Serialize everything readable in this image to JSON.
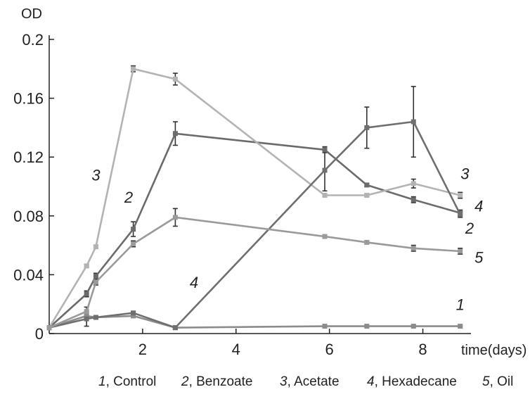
{
  "chart_data": {
    "type": "line",
    "ylabel": "OD",
    "xlabel": "time(days)",
    "xlim": [
      0,
      9
    ],
    "ylim": [
      0,
      0.2
    ],
    "x_ticks": [
      2,
      4,
      6,
      8
    ],
    "y_ticks": [
      0,
      0.04,
      0.08,
      0.12,
      0.16,
      0.2
    ],
    "y_tick_labels": [
      "0",
      "0.04",
      "0.08",
      "0.12",
      "0.16",
      "0.2"
    ],
    "grid": false,
    "legend_position": "bottom",
    "legend": [
      {
        "num": "1",
        "label": ", Control"
      },
      {
        "num": "2",
        "label": ", Benzoate"
      },
      {
        "num": "3",
        "label": ", Acetate"
      },
      {
        "num": "4",
        "label": ", Hexadecane"
      },
      {
        "num": "5",
        "label": ", Oil"
      }
    ],
    "series": [
      {
        "tag": "1",
        "color": "#8c8c8c",
        "x": [
          0,
          0.8,
          1.0,
          1.8,
          2.7,
          5.9,
          6.8,
          7.8,
          8.8
        ],
        "y": [
          0.004,
          0.012,
          0.011,
          0.012,
          0.004,
          0.005,
          0.005,
          0.005,
          0.005
        ],
        "err": [
          0,
          0.001,
          0.001,
          0.001,
          0.001,
          0.0005,
          0.0005,
          0.0005,
          0.0005
        ]
      },
      {
        "tag": "2",
        "color": "#6b6b6b",
        "x": [
          0,
          0.8,
          1.0,
          1.8,
          2.7,
          5.9,
          6.8,
          7.8,
          8.8
        ],
        "y": [
          0.004,
          0.027,
          0.039,
          0.071,
          0.136,
          0.125,
          0.101,
          0.091,
          0.082
        ],
        "err": [
          0,
          0.002,
          0.002,
          0.005,
          0.008,
          0.002,
          0.001,
          0.002,
          0.002
        ]
      },
      {
        "tag": "3",
        "color": "#b3b3b3",
        "x": [
          0,
          0.8,
          1.0,
          1.8,
          2.7,
          5.9,
          6.8,
          7.8,
          8.8
        ],
        "y": [
          0.004,
          0.046,
          0.059,
          0.18,
          0.173,
          0.094,
          0.094,
          0.102,
          0.094
        ],
        "err": [
          0,
          0.001,
          0.001,
          0.002,
          0.004,
          0.001,
          0.001,
          0.003,
          0.002
        ]
      },
      {
        "tag": "4",
        "color": "#6f6f6f",
        "x": [
          0,
          0.8,
          1.0,
          1.8,
          2.7,
          5.9,
          6.8,
          7.8,
          8.8
        ],
        "y": [
          0.004,
          0.01,
          0.011,
          0.014,
          0.004,
          0.111,
          0.14,
          0.144,
          0.081
        ],
        "err": [
          0,
          0.005,
          0.001,
          0.001,
          0.001,
          0.014,
          0.014,
          0.024,
          0.002
        ]
      },
      {
        "tag": "5",
        "color": "#9a9a9a",
        "x": [
          0,
          0.8,
          1.0,
          1.8,
          2.7,
          5.9,
          6.8,
          7.8,
          8.8
        ],
        "y": [
          0.004,
          0.015,
          0.035,
          0.061,
          0.079,
          0.066,
          0.062,
          0.058,
          0.056
        ],
        "err": [
          0,
          0.003,
          0.002,
          0.002,
          0.006,
          0.001,
          0.001,
          0.002,
          0.002
        ]
      }
    ],
    "annotations": [
      {
        "text": "3",
        "x": 1.0,
        "y": 0.104
      },
      {
        "text": "2",
        "x": 1.7,
        "y": 0.089
      },
      {
        "text": "4",
        "x": 3.1,
        "y": 0.031
      },
      {
        "text": "3",
        "x": 8.9,
        "y": 0.105
      },
      {
        "text": "4",
        "x": 9.2,
        "y": 0.083
      },
      {
        "text": "2",
        "x": 9.0,
        "y": 0.068
      },
      {
        "text": "5",
        "x": 9.2,
        "y": 0.048
      },
      {
        "text": "1",
        "x": 8.8,
        "y": 0.016
      }
    ]
  }
}
